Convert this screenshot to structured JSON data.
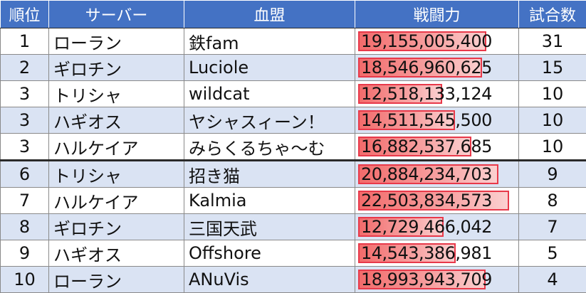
{
  "headers": {
    "rank": "順位",
    "server": "サーバー",
    "guild": "血盟",
    "power": "戦闘力",
    "matches": "試合数"
  },
  "colors": {
    "header_bg": "#4472c4",
    "row_alt_bg": "#dae3f3",
    "bar_fill": "#f26b6b",
    "bar_border": "#e8394a"
  },
  "rows": [
    {
      "rank": "1",
      "server": "ローラン",
      "guild": "鉄fam",
      "power": "19,155,005,400",
      "matches": "31",
      "bar_fraction": 0.848
    },
    {
      "rank": "2",
      "server": "ギロチン",
      "guild": "Luciole",
      "power": "18,546,960,625",
      "matches": "15",
      "bar_fraction": 0.822
    },
    {
      "rank": "3",
      "server": "トリシャ",
      "guild": "wildcat",
      "power": "12,518,133,124",
      "matches": "10",
      "bar_fraction": 0.556
    },
    {
      "rank": "3",
      "server": "ハギオス",
      "guild": "ヤシャスィーン！",
      "power": "14,511,545,500",
      "matches": "10",
      "bar_fraction": 0.643
    },
    {
      "rank": "3",
      "server": "ハルケイア",
      "guild": "みらくるちゃ～む",
      "power": "16,882,537,685",
      "matches": "10",
      "bar_fraction": 0.748
    },
    {
      "rank": "6",
      "server": "トリシャ",
      "guild": "招き猫",
      "power": "20,884,234,703",
      "matches": "9",
      "bar_fraction": 0.928
    },
    {
      "rank": "7",
      "server": "ハルケイア",
      "guild": "Kalmia",
      "power": "22,503,834,573",
      "matches": "8",
      "bar_fraction": 1.0
    },
    {
      "rank": "8",
      "server": "ギロチン",
      "guild": "三国天武",
      "power": "12,729,466,042",
      "matches": "7",
      "bar_fraction": 0.566
    },
    {
      "rank": "9",
      "server": "ハギオス",
      "guild": "Offshore",
      "power": "14,543,386,981",
      "matches": "5",
      "bar_fraction": 0.646
    },
    {
      "rank": "10",
      "server": "ローラン",
      "guild": "ANuVis",
      "power": "18,993,943,709",
      "matches": "4",
      "bar_fraction": 0.844
    }
  ]
}
